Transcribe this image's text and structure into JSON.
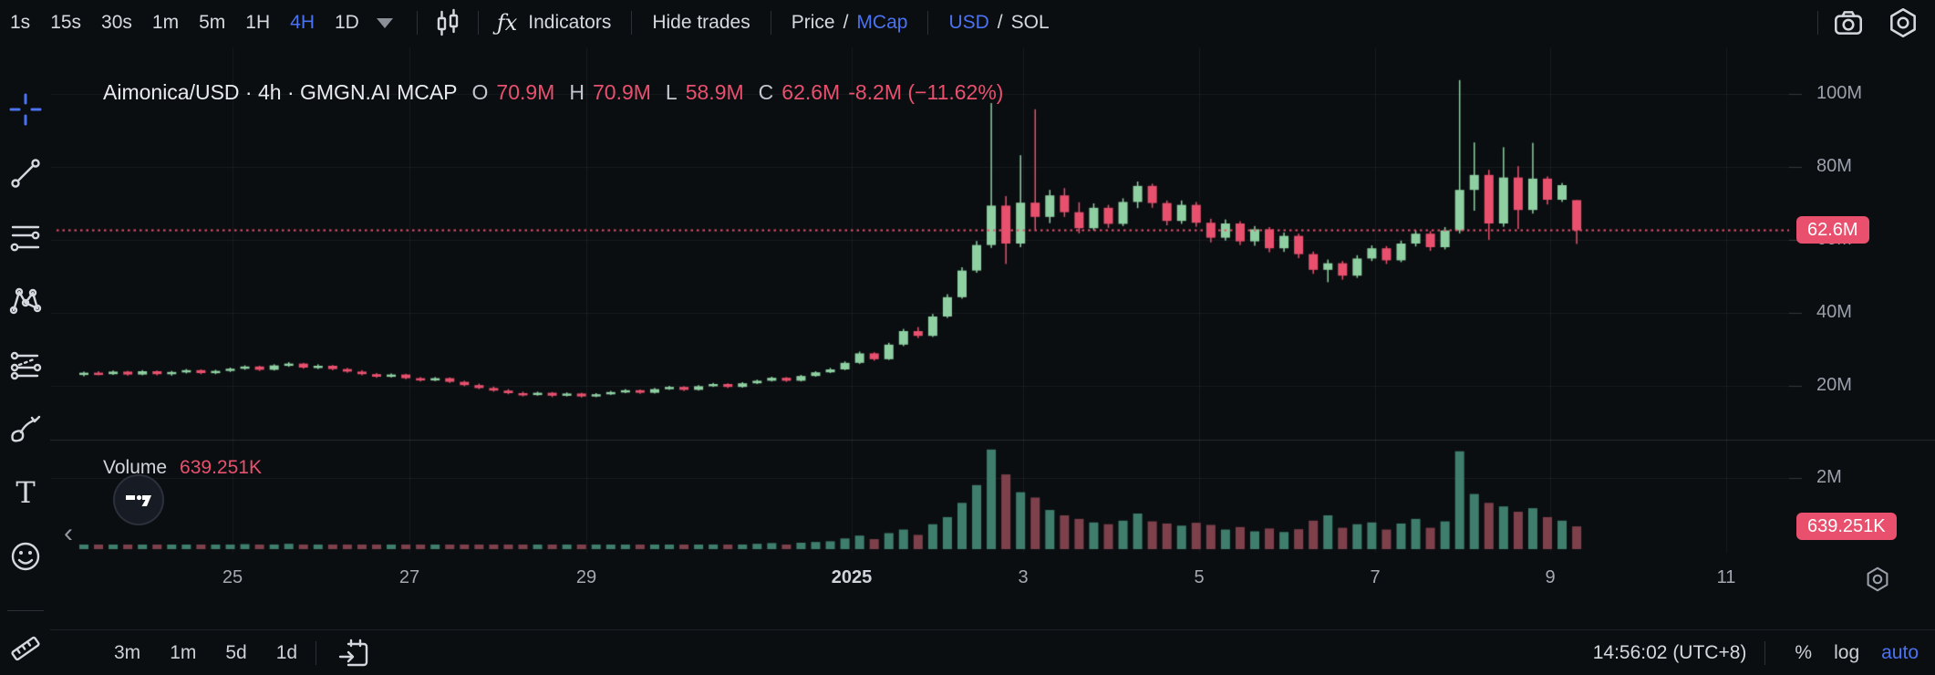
{
  "colors": {
    "background": "#0b0e11",
    "accent_blue": "#4b72f0",
    "candle_up": "#8fd0a2",
    "candle_down": "#e8506e",
    "volume_up": "#3f7e6c",
    "volume_down": "#7e414b",
    "badge_red": "#e8506e",
    "axis_text": "#9ba1ab"
  },
  "icons": {
    "caret": "▾",
    "chevron_left": "‹",
    "fx": "ƒx"
  },
  "top_toolbar": {
    "timeframes": [
      "1s",
      "15s",
      "30s",
      "1m",
      "5m",
      "1H",
      "4H",
      "1D"
    ],
    "active_timeframe": "4H",
    "indicators_label": "Indicators",
    "hide_trades_label": "Hide trades",
    "price_label": "Price",
    "mcap_label": "MCap",
    "usd_label": "USD",
    "sol_label": "SOL",
    "toggle_sep": "/"
  },
  "chart_header": {
    "symbol_title": "Aimonica/USD · 4h · GMGN.AI MCAP",
    "o_label": "O",
    "o_value": "70.9M",
    "h_label": "H",
    "h_value": "70.9M",
    "l_label": "L",
    "l_value": "58.9M",
    "c_label": "C",
    "c_value": "62.6M",
    "change": "-8.2M (−11.62%)"
  },
  "volume_pane": {
    "label": "Volume",
    "value": "639.251K"
  },
  "bottom_toolbar": {
    "ranges": [
      "3m",
      "1m",
      "5d",
      "1d"
    ],
    "clock": "14:56:02 (UTC+8)",
    "percent_label": "%",
    "log_label": "log",
    "auto_label": "auto"
  },
  "chart_data": {
    "type": "candlestick",
    "symbol": "Aimonica/USD",
    "interval": "4h",
    "source": "GMGN.AI MCAP",
    "units": "market cap, USD millions",
    "current_ohlc": {
      "open": 70.9,
      "high": 70.9,
      "low": 58.9,
      "close": 62.6,
      "change": "-8.2M",
      "change_pct": "-11.62%"
    },
    "price_axis_ticks": [
      "100M",
      "80M",
      "60M",
      "40M",
      "20M"
    ],
    "price_axis_values_M": [
      100,
      80,
      60,
      40,
      20
    ],
    "price_badge": "62.6M",
    "last_close_M": 62.6,
    "volume_axis_tick": "2M",
    "volume_axis_value_M": 2,
    "volume_badge": "639.251K",
    "last_volume_M": 0.639,
    "x_labels": [
      "25",
      "27",
      "29",
      "2025",
      "3",
      "5",
      "7",
      "9",
      "11"
    ],
    "grid": true,
    "candles_format": [
      "open_M",
      "high_M",
      "low_M",
      "close_M",
      "volume_M"
    ],
    "candles": [
      [
        23.0,
        23.9,
        22.6,
        23.6,
        0.09
      ],
      [
        23.6,
        24.0,
        22.9,
        23.2,
        0.07
      ],
      [
        23.2,
        24.2,
        23.0,
        23.9,
        0.1
      ],
      [
        23.9,
        24.1,
        22.8,
        23.1,
        0.08
      ],
      [
        23.1,
        24.3,
        22.9,
        24.0,
        0.11
      ],
      [
        24.0,
        24.2,
        22.9,
        23.2,
        0.09
      ],
      [
        23.2,
        24.1,
        22.8,
        23.8,
        0.07
      ],
      [
        23.8,
        24.6,
        23.4,
        24.3,
        0.1
      ],
      [
        24.3,
        24.5,
        23.2,
        23.5,
        0.08
      ],
      [
        23.5,
        24.4,
        23.2,
        24.1,
        0.09
      ],
      [
        24.1,
        25.0,
        23.8,
        24.7,
        0.12
      ],
      [
        24.7,
        25.6,
        24.4,
        25.3,
        0.14
      ],
      [
        25.3,
        25.5,
        24.1,
        24.4,
        0.11
      ],
      [
        24.4,
        25.9,
        24.2,
        25.6,
        0.13
      ],
      [
        25.6,
        26.5,
        25.2,
        26.1,
        0.15
      ],
      [
        26.1,
        26.3,
        24.7,
        25.0,
        0.12
      ],
      [
        25.0,
        25.9,
        24.6,
        25.5,
        0.1
      ],
      [
        25.5,
        25.7,
        24.3,
        24.6,
        0.11
      ],
      [
        24.6,
        24.9,
        23.6,
        23.9,
        0.1
      ],
      [
        23.9,
        24.3,
        22.9,
        23.2,
        0.11
      ],
      [
        23.2,
        23.5,
        22.2,
        22.5,
        0.09
      ],
      [
        22.5,
        23.4,
        22.3,
        23.1,
        0.08
      ],
      [
        23.1,
        23.3,
        21.8,
        22.1,
        0.1
      ],
      [
        22.1,
        22.4,
        21.2,
        21.5,
        0.09
      ],
      [
        21.5,
        22.4,
        21.3,
        22.1,
        0.07
      ],
      [
        22.1,
        22.3,
        20.8,
        21.1,
        0.09
      ],
      [
        21.1,
        21.4,
        19.9,
        20.2,
        0.11
      ],
      [
        20.2,
        20.6,
        19.1,
        19.4,
        0.1
      ],
      [
        19.4,
        19.8,
        18.4,
        18.7,
        0.12
      ],
      [
        18.7,
        19.1,
        17.7,
        18.0,
        0.1
      ],
      [
        18.0,
        18.4,
        17.1,
        17.5,
        0.11
      ],
      [
        17.5,
        18.4,
        17.3,
        18.1,
        0.08
      ],
      [
        18.1,
        18.3,
        16.9,
        17.3,
        0.09
      ],
      [
        17.3,
        18.2,
        17.1,
        17.9,
        0.07
      ],
      [
        17.9,
        18.1,
        16.8,
        17.1,
        0.09
      ],
      [
        17.1,
        18.0,
        16.9,
        17.7,
        0.08
      ],
      [
        17.7,
        18.6,
        17.5,
        18.3,
        0.09
      ],
      [
        18.3,
        19.1,
        18.0,
        18.8,
        0.1
      ],
      [
        18.8,
        19.0,
        17.8,
        18.1,
        0.08
      ],
      [
        18.1,
        19.4,
        17.9,
        19.1,
        0.11
      ],
      [
        19.1,
        20.0,
        18.9,
        19.7,
        0.12
      ],
      [
        19.7,
        19.9,
        18.6,
        18.9,
        0.09
      ],
      [
        18.9,
        20.2,
        18.7,
        19.9,
        0.12
      ],
      [
        19.9,
        20.8,
        19.7,
        20.5,
        0.13
      ],
      [
        20.5,
        20.7,
        19.4,
        19.7,
        0.1
      ],
      [
        19.7,
        21.0,
        19.5,
        20.7,
        0.13
      ],
      [
        20.7,
        21.7,
        20.5,
        21.4,
        0.15
      ],
      [
        21.4,
        22.5,
        21.2,
        22.2,
        0.17
      ],
      [
        22.2,
        22.4,
        21.1,
        21.4,
        0.12
      ],
      [
        21.4,
        23.0,
        21.2,
        22.7,
        0.18
      ],
      [
        22.7,
        24.0,
        22.5,
        23.7,
        0.2
      ],
      [
        23.7,
        24.9,
        23.5,
        24.5,
        0.22
      ],
      [
        24.5,
        26.7,
        24.3,
        26.3,
        0.3
      ],
      [
        26.3,
        29.4,
        26.0,
        28.9,
        0.38
      ],
      [
        28.9,
        29.2,
        26.9,
        27.3,
        0.28
      ],
      [
        27.3,
        31.8,
        27.1,
        31.3,
        0.45
      ],
      [
        31.3,
        35.6,
        30.9,
        35.0,
        0.55
      ],
      [
        35.0,
        36.1,
        33.1,
        33.7,
        0.4
      ],
      [
        33.7,
        39.7,
        33.4,
        39.0,
        0.7
      ],
      [
        39.0,
        45.1,
        38.6,
        44.3,
        0.9
      ],
      [
        44.3,
        52.5,
        43.9,
        51.6,
        1.3
      ],
      [
        51.6,
        59.7,
        51.0,
        58.6,
        1.8
      ],
      [
        58.6,
        97.5,
        57.8,
        69.4,
        2.8
      ],
      [
        69.4,
        72.0,
        53.4,
        59.0,
        2.1
      ],
      [
        59.0,
        83.2,
        58.0,
        70.2,
        1.6
      ],
      [
        70.2,
        95.8,
        62.8,
        66.3,
        1.45
      ],
      [
        66.3,
        73.7,
        64.6,
        72.2,
        1.1
      ],
      [
        72.2,
        74.2,
        66.3,
        67.6,
        0.95
      ],
      [
        67.6,
        70.3,
        61.8,
        63.2,
        0.85
      ],
      [
        63.2,
        70.0,
        62.6,
        68.8,
        0.75
      ],
      [
        68.8,
        69.6,
        63.3,
        64.4,
        0.7
      ],
      [
        64.4,
        71.4,
        63.8,
        70.4,
        0.8
      ],
      [
        70.4,
        76.0,
        68.7,
        74.8,
        1.0
      ],
      [
        74.8,
        75.4,
        68.8,
        70.1,
        0.78
      ],
      [
        70.1,
        70.8,
        64.0,
        65.2,
        0.72
      ],
      [
        65.2,
        70.8,
        64.4,
        69.6,
        0.66
      ],
      [
        69.6,
        70.4,
        63.6,
        64.7,
        0.74
      ],
      [
        64.7,
        65.8,
        59.3,
        60.6,
        0.68
      ],
      [
        60.6,
        65.6,
        59.8,
        64.5,
        0.55
      ],
      [
        64.5,
        65.1,
        58.6,
        59.6,
        0.62
      ],
      [
        59.6,
        63.8,
        58.4,
        62.9,
        0.5
      ],
      [
        62.9,
        63.5,
        56.6,
        57.7,
        0.58
      ],
      [
        57.7,
        62.0,
        56.7,
        61.1,
        0.48
      ],
      [
        61.1,
        61.7,
        55.0,
        56.1,
        0.56
      ],
      [
        56.1,
        56.8,
        50.7,
        51.8,
        0.8
      ],
      [
        51.8,
        54.6,
        48.4,
        53.6,
        0.95
      ],
      [
        53.6,
        54.2,
        49.1,
        50.2,
        0.6
      ],
      [
        50.2,
        55.8,
        49.6,
        54.9,
        0.7
      ],
      [
        54.9,
        58.5,
        54.2,
        57.7,
        0.75
      ],
      [
        57.7,
        58.3,
        53.4,
        54.4,
        0.55
      ],
      [
        54.4,
        59.8,
        53.9,
        59.0,
        0.72
      ],
      [
        59.0,
        62.6,
        58.2,
        61.7,
        0.85
      ],
      [
        61.7,
        62.4,
        57.0,
        58.0,
        0.6
      ],
      [
        58.0,
        63.5,
        57.4,
        62.6,
        0.78
      ],
      [
        62.6,
        103.8,
        61.8,
        73.7,
        2.75
      ],
      [
        73.7,
        86.7,
        68.0,
        77.8,
        1.55
      ],
      [
        77.8,
        79.2,
        60.0,
        64.5,
        1.3
      ],
      [
        64.5,
        85.4,
        63.6,
        77.1,
        1.2
      ],
      [
        77.1,
        80.2,
        63.0,
        68.2,
        1.05
      ],
      [
        68.2,
        86.6,
        67.2,
        76.8,
        1.15
      ],
      [
        76.8,
        77.4,
        69.7,
        71.0,
        0.9
      ],
      [
        71.0,
        75.6,
        70.4,
        75.0,
        0.8
      ],
      [
        70.9,
        70.9,
        58.9,
        62.6,
        0.639
      ]
    ]
  }
}
